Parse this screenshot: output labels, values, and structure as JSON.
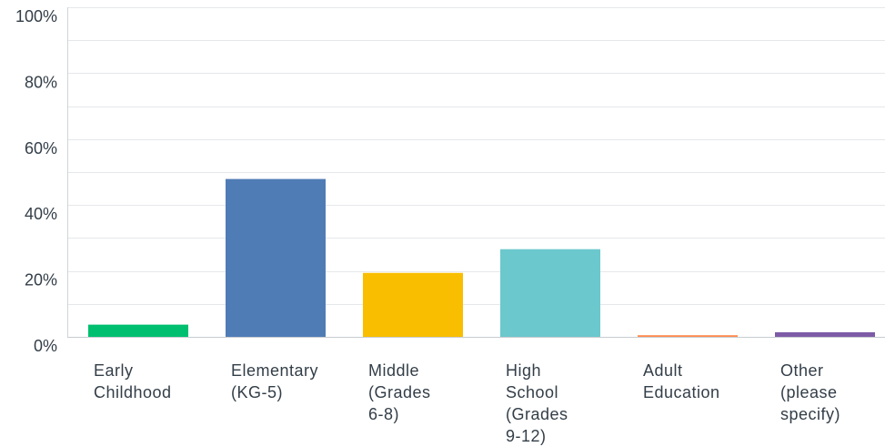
{
  "chart_data": {
    "type": "bar",
    "categories": [
      "Early Childhood",
      "Elementary (KG-5)",
      "Middle (Grades 6-8)",
      "High School (Grades 9-12)",
      "Adult Education",
      "Other (please specify)"
    ],
    "category_lines": [
      [
        "Early",
        "Childhood"
      ],
      [
        "Elementary",
        "(KG-5)"
      ],
      [
        "Middle",
        "(Grades",
        "6-8)"
      ],
      [
        "High",
        "School",
        "(Grades",
        "9-12)"
      ],
      [
        "Adult",
        "Education"
      ],
      [
        "Other",
        "(please",
        "specify)"
      ]
    ],
    "values": [
      3.7,
      47.9,
      19.4,
      26.6,
      0.5,
      1.4
    ],
    "colors": [
      "#00bf6f",
      "#507cb6",
      "#f9be00",
      "#6bc8cd",
      "#ff8b4f",
      "#7d5ba6"
    ],
    "yticks": [
      "0%",
      "20%",
      "40%",
      "60%",
      "80%",
      "100%"
    ],
    "ylim": [
      0,
      100
    ],
    "grid": true,
    "title": "",
    "xlabel": "",
    "ylabel": ""
  }
}
